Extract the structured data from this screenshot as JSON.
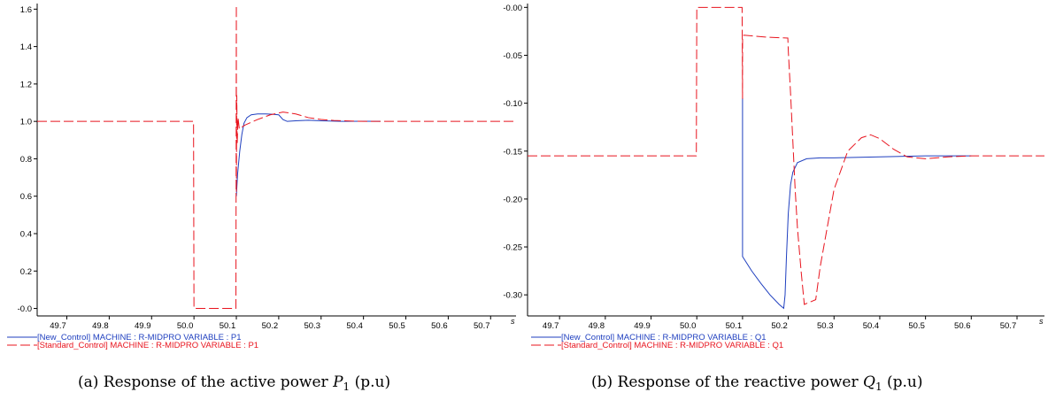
{
  "colors": {
    "new_control": "#1f3fbf",
    "standard_control": "#e8141e",
    "axis": "#000000"
  },
  "chart_data": [
    {
      "type": "line",
      "title": "",
      "caption": {
        "prefix": "(a) Response of the active power ",
        "symbol": "P",
        "subscript": "1",
        "suffix": " (p.u)"
      },
      "xlabel": "",
      "ylabel": "",
      "x_unit": "s",
      "xlim": [
        49.63,
        50.76
      ],
      "ylim": [
        -0.04,
        1.63
      ],
      "x_ticks": [
        49.7,
        49.8,
        49.9,
        50.0,
        50.1,
        50.2,
        50.3,
        50.4,
        50.5,
        50.6,
        50.7
      ],
      "x_tick_labels": [
        "49.7",
        "49.8",
        "49.9",
        "50.0",
        "50.1",
        "50.2",
        "50.3",
        "50.4",
        "50.5",
        "50.6",
        "50.7"
      ],
      "y_ticks": [
        0.0,
        0.2,
        0.4,
        0.6,
        0.8,
        1.0,
        1.2,
        1.4,
        1.6
      ],
      "y_tick_labels": [
        "-0.0",
        "0.2",
        "0.4",
        "0.6",
        "0.8",
        "1.0",
        "1.2",
        "1.4",
        "1.6"
      ],
      "grid": false,
      "legend_position": "bottom-left",
      "series": [
        {
          "name": "[New_Control]   MACHINE : R-MIDPRO VARIABLE : P1",
          "style": "solid",
          "x": [
            50.1,
            50.103,
            50.108,
            50.113,
            50.118,
            50.125,
            50.135,
            50.15,
            50.17,
            50.185,
            50.2,
            50.21,
            50.22,
            50.24,
            50.27,
            50.3,
            50.35,
            50.4,
            50.44
          ],
          "y": [
            0.6,
            0.72,
            0.84,
            0.93,
            0.99,
            1.02,
            1.035,
            1.04,
            1.04,
            1.038,
            1.035,
            1.01,
            1.0,
            1.003,
            1.006,
            1.003,
            1.0,
            1.001,
            1.0
          ]
        },
        {
          "name": "[Standard_Control]   MACHINE : R-MIDPRO VARIABLE : P1",
          "style": "dash",
          "x": [
            49.63,
            49.999,
            50.0,
            50.099,
            50.1,
            50.1001,
            50.101,
            50.102,
            50.104,
            50.107,
            50.12,
            50.15,
            50.18,
            50.21,
            50.24,
            50.27,
            50.3,
            50.33,
            50.4,
            50.5,
            50.76
          ],
          "y": [
            1.0,
            1.0,
            0.0,
            0.0,
            1.62,
            0.62,
            1.14,
            0.88,
            1.02,
            0.96,
            0.98,
            1.01,
            1.035,
            1.05,
            1.04,
            1.02,
            1.01,
            1.005,
            1.0,
            1.0,
            1.0
          ]
        }
      ]
    },
    {
      "type": "line",
      "title": "",
      "caption": {
        "prefix": "(b) Response of the reactive power ",
        "symbol": "Q",
        "subscript": "1",
        "suffix": " (p.u)"
      },
      "xlabel": "",
      "ylabel": "",
      "x_unit": "s",
      "xlim": [
        49.63,
        50.76
      ],
      "ylim": [
        -0.322,
        0.004
      ],
      "x_ticks": [
        49.7,
        49.8,
        49.9,
        50.0,
        50.1,
        50.2,
        50.3,
        50.4,
        50.5,
        50.6,
        50.7
      ],
      "x_tick_labels": [
        "49.7",
        "49.8",
        "49.9",
        "50.0",
        "50.1",
        "50.2",
        "50.3",
        "50.4",
        "50.5",
        "50.6",
        "50.7"
      ],
      "y_ticks": [
        -0.0,
        -0.05,
        -0.1,
        -0.15,
        -0.2,
        -0.25,
        -0.3
      ],
      "y_tick_labels": [
        "-0.00",
        "-0.05",
        "-0.10",
        "-0.15",
        "-0.20",
        "-0.25",
        "-0.30"
      ],
      "grid": false,
      "legend_position": "bottom-left",
      "series": [
        {
          "name": "[New_Control]   MACHINE : R-MIDPRO VARIABLE : Q1",
          "style": "solid",
          "x": [
            50.1,
            50.1,
            50.12,
            50.14,
            50.16,
            50.18,
            50.19,
            50.193,
            50.196,
            50.2,
            50.205,
            50.21,
            50.22,
            50.24,
            50.27,
            50.3,
            50.4,
            50.5,
            50.6
          ],
          "y": [
            -0.095,
            -0.26,
            -0.275,
            -0.288,
            -0.3,
            -0.31,
            -0.314,
            -0.3,
            -0.26,
            -0.215,
            -0.185,
            -0.172,
            -0.162,
            -0.158,
            -0.157,
            -0.157,
            -0.156,
            -0.155,
            -0.155
          ]
        },
        {
          "name": "[Standard_Control]   MACHINE : R-MIDPRO VARIABLE : Q1",
          "style": "dash",
          "x": [
            49.63,
            49.999,
            50.0,
            50.099,
            50.1,
            50.1001,
            50.103,
            50.15,
            50.199,
            50.2,
            50.205,
            50.21,
            50.215,
            50.22,
            50.228,
            50.235,
            50.26,
            50.27,
            50.3,
            50.33,
            50.36,
            50.38,
            50.4,
            50.43,
            50.46,
            50.5,
            50.55,
            50.6,
            50.76
          ],
          "y": [
            -0.155,
            -0.155,
            0.0,
            0.0,
            -0.0955,
            -0.03,
            -0.029,
            -0.031,
            -0.032,
            -0.045,
            -0.09,
            -0.14,
            -0.19,
            -0.23,
            -0.275,
            -0.31,
            -0.305,
            -0.27,
            -0.19,
            -0.15,
            -0.136,
            -0.133,
            -0.137,
            -0.148,
            -0.156,
            -0.158,
            -0.156,
            -0.155,
            -0.155
          ]
        }
      ]
    }
  ]
}
